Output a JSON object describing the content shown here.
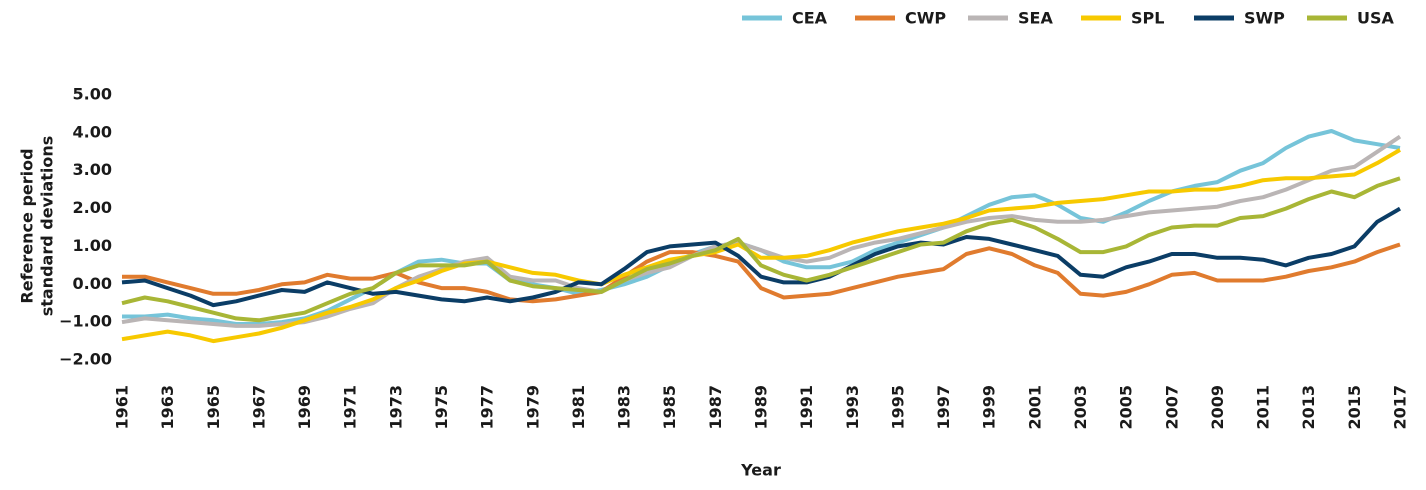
{
  "chart_data": {
    "type": "line",
    "y_label": [
      "Reference period",
      "standard deviations"
    ],
    "x_label": "Year",
    "x": [
      1961,
      1962,
      1963,
      1964,
      1965,
      1966,
      1967,
      1968,
      1969,
      1970,
      1971,
      1972,
      1973,
      1974,
      1975,
      1976,
      1977,
      1978,
      1979,
      1980,
      1981,
      1982,
      1983,
      1984,
      1985,
      1986,
      1987,
      1988,
      1989,
      1990,
      1991,
      1992,
      1993,
      1994,
      1995,
      1996,
      1997,
      1998,
      1999,
      2000,
      2001,
      2002,
      2003,
      2004,
      2005,
      2006,
      2007,
      2008,
      2009,
      2010,
      2011,
      2012,
      2013,
      2014,
      2015,
      2016,
      2017
    ],
    "xlim": [
      1961,
      2017
    ],
    "xticks": [
      1961,
      1963,
      1965,
      1967,
      1969,
      1971,
      1973,
      1975,
      1977,
      1979,
      1981,
      1983,
      1985,
      1987,
      1989,
      1991,
      1993,
      1995,
      1997,
      1999,
      2001,
      2003,
      2005,
      2007,
      2009,
      2011,
      2013,
      2015,
      2017
    ],
    "ylim": [
      -2,
      5
    ],
    "yticks": [
      {
        "value": 5,
        "label": "5.00"
      },
      {
        "value": 4,
        "label": "4.00"
      },
      {
        "value": 3,
        "label": "3.00"
      },
      {
        "value": 2,
        "label": "2.00"
      },
      {
        "value": 1,
        "label": "1.00"
      },
      {
        "value": 0,
        "label": "0.00"
      },
      {
        "value": -1,
        "label": "−1.00"
      },
      {
        "value": -2,
        "label": "−2.00"
      }
    ],
    "grid": false,
    "legend": "top-right",
    "series": [
      {
        "name": "CEA",
        "color": "#76c4d9",
        "values": [
          -0.85,
          -0.85,
          -0.8,
          -0.9,
          -0.95,
          -1.05,
          -1.05,
          -1.0,
          -0.9,
          -0.7,
          -0.4,
          -0.1,
          0.3,
          0.6,
          0.65,
          0.55,
          0.55,
          0.1,
          0.0,
          -0.1,
          -0.25,
          -0.15,
          0.0,
          0.2,
          0.5,
          0.8,
          1.0,
          1.1,
          0.9,
          0.6,
          0.45,
          0.45,
          0.6,
          0.9,
          1.1,
          1.3,
          1.5,
          1.8,
          2.1,
          2.3,
          2.35,
          2.1,
          1.75,
          1.65,
          1.9,
          2.2,
          2.45,
          2.6,
          2.7,
          3.0,
          3.2,
          3.6,
          3.9,
          4.05,
          3.8,
          3.7,
          3.6
        ]
      },
      {
        "name": "CWP",
        "color": "#e07b2e",
        "values": [
          0.2,
          0.2,
          0.05,
          -0.1,
          -0.25,
          -0.25,
          -0.15,
          0.0,
          0.05,
          0.25,
          0.15,
          0.15,
          0.3,
          0.05,
          -0.1,
          -0.1,
          -0.2,
          -0.4,
          -0.45,
          -0.4,
          -0.3,
          -0.2,
          0.2,
          0.6,
          0.85,
          0.85,
          0.75,
          0.6,
          -0.1,
          -0.35,
          -0.3,
          -0.25,
          -0.1,
          0.05,
          0.2,
          0.3,
          0.4,
          0.8,
          0.95,
          0.8,
          0.5,
          0.3,
          -0.25,
          -0.3,
          -0.2,
          0.0,
          0.25,
          0.3,
          0.1,
          0.1,
          0.1,
          0.2,
          0.35,
          0.45,
          0.6,
          0.85,
          1.05
        ]
      },
      {
        "name": "SEA",
        "color": "#bab5b5",
        "values": [
          -1.0,
          -0.9,
          -0.95,
          -1.0,
          -1.05,
          -1.1,
          -1.1,
          -1.05,
          -1.0,
          -0.85,
          -0.65,
          -0.5,
          -0.1,
          0.2,
          0.4,
          0.6,
          0.7,
          0.2,
          0.1,
          0.1,
          -0.1,
          -0.2,
          0.1,
          0.3,
          0.45,
          0.75,
          1.0,
          1.1,
          0.9,
          0.7,
          0.6,
          0.7,
          0.95,
          1.1,
          1.2,
          1.35,
          1.5,
          1.65,
          1.75,
          1.8,
          1.7,
          1.65,
          1.65,
          1.7,
          1.8,
          1.9,
          1.95,
          2.0,
          2.05,
          2.2,
          2.3,
          2.5,
          2.75,
          3.0,
          3.1,
          3.5,
          3.9
        ]
      },
      {
        "name": "SPL",
        "color": "#f7c900",
        "values": [
          -1.45,
          -1.35,
          -1.25,
          -1.35,
          -1.5,
          -1.4,
          -1.3,
          -1.15,
          -0.95,
          -0.75,
          -0.6,
          -0.4,
          -0.1,
          0.1,
          0.35,
          0.55,
          0.6,
          0.45,
          0.3,
          0.25,
          0.1,
          0.0,
          0.25,
          0.45,
          0.65,
          0.75,
          0.85,
          1.05,
          0.7,
          0.7,
          0.75,
          0.9,
          1.1,
          1.25,
          1.4,
          1.5,
          1.6,
          1.75,
          1.95,
          2.0,
          2.05,
          2.15,
          2.2,
          2.25,
          2.35,
          2.45,
          2.45,
          2.5,
          2.5,
          2.6,
          2.75,
          2.8,
          2.8,
          2.85,
          2.9,
          3.2,
          3.55
        ]
      },
      {
        "name": "SWP",
        "color": "#0b3d66",
        "values": [
          0.05,
          0.1,
          -0.1,
          -0.3,
          -0.55,
          -0.45,
          -0.3,
          -0.15,
          -0.2,
          0.05,
          -0.1,
          -0.25,
          -0.2,
          -0.3,
          -0.4,
          -0.45,
          -0.35,
          -0.45,
          -0.35,
          -0.2,
          0.05,
          0.0,
          0.4,
          0.85,
          1.0,
          1.05,
          1.1,
          0.75,
          0.2,
          0.05,
          0.05,
          0.2,
          0.5,
          0.8,
          1.0,
          1.1,
          1.05,
          1.25,
          1.2,
          1.05,
          0.9,
          0.75,
          0.25,
          0.2,
          0.45,
          0.6,
          0.8,
          0.8,
          0.7,
          0.7,
          0.65,
          0.5,
          0.7,
          0.8,
          1.0,
          1.65,
          2.0
        ]
      },
      {
        "name": "USA",
        "color": "#a8b636",
        "values": [
          -0.5,
          -0.35,
          -0.45,
          -0.6,
          -0.75,
          -0.9,
          -0.95,
          -0.85,
          -0.75,
          -0.5,
          -0.25,
          -0.1,
          0.3,
          0.5,
          0.5,
          0.5,
          0.6,
          0.1,
          -0.05,
          -0.1,
          -0.15,
          -0.2,
          0.1,
          0.4,
          0.55,
          0.75,
          0.9,
          1.2,
          0.5,
          0.25,
          0.1,
          0.25,
          0.45,
          0.65,
          0.85,
          1.05,
          1.1,
          1.4,
          1.6,
          1.7,
          1.5,
          1.2,
          0.85,
          0.85,
          1.0,
          1.3,
          1.5,
          1.55,
          1.55,
          1.75,
          1.8,
          2.0,
          2.25,
          2.45,
          2.3,
          2.6,
          2.8
        ]
      }
    ]
  }
}
